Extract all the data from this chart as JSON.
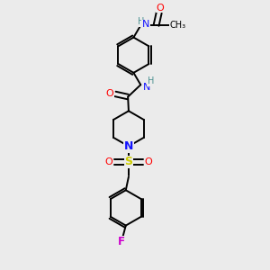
{
  "bg_color": "#ebebeb",
  "atom_colors": {
    "C": "#000000",
    "N": "#1414ff",
    "O": "#ff0000",
    "S": "#cccc00",
    "F": "#cc00cc",
    "H": "#4c9191"
  },
  "bond_lw": 1.4,
  "figsize": [
    3.0,
    3.0
  ],
  "dpi": 100
}
